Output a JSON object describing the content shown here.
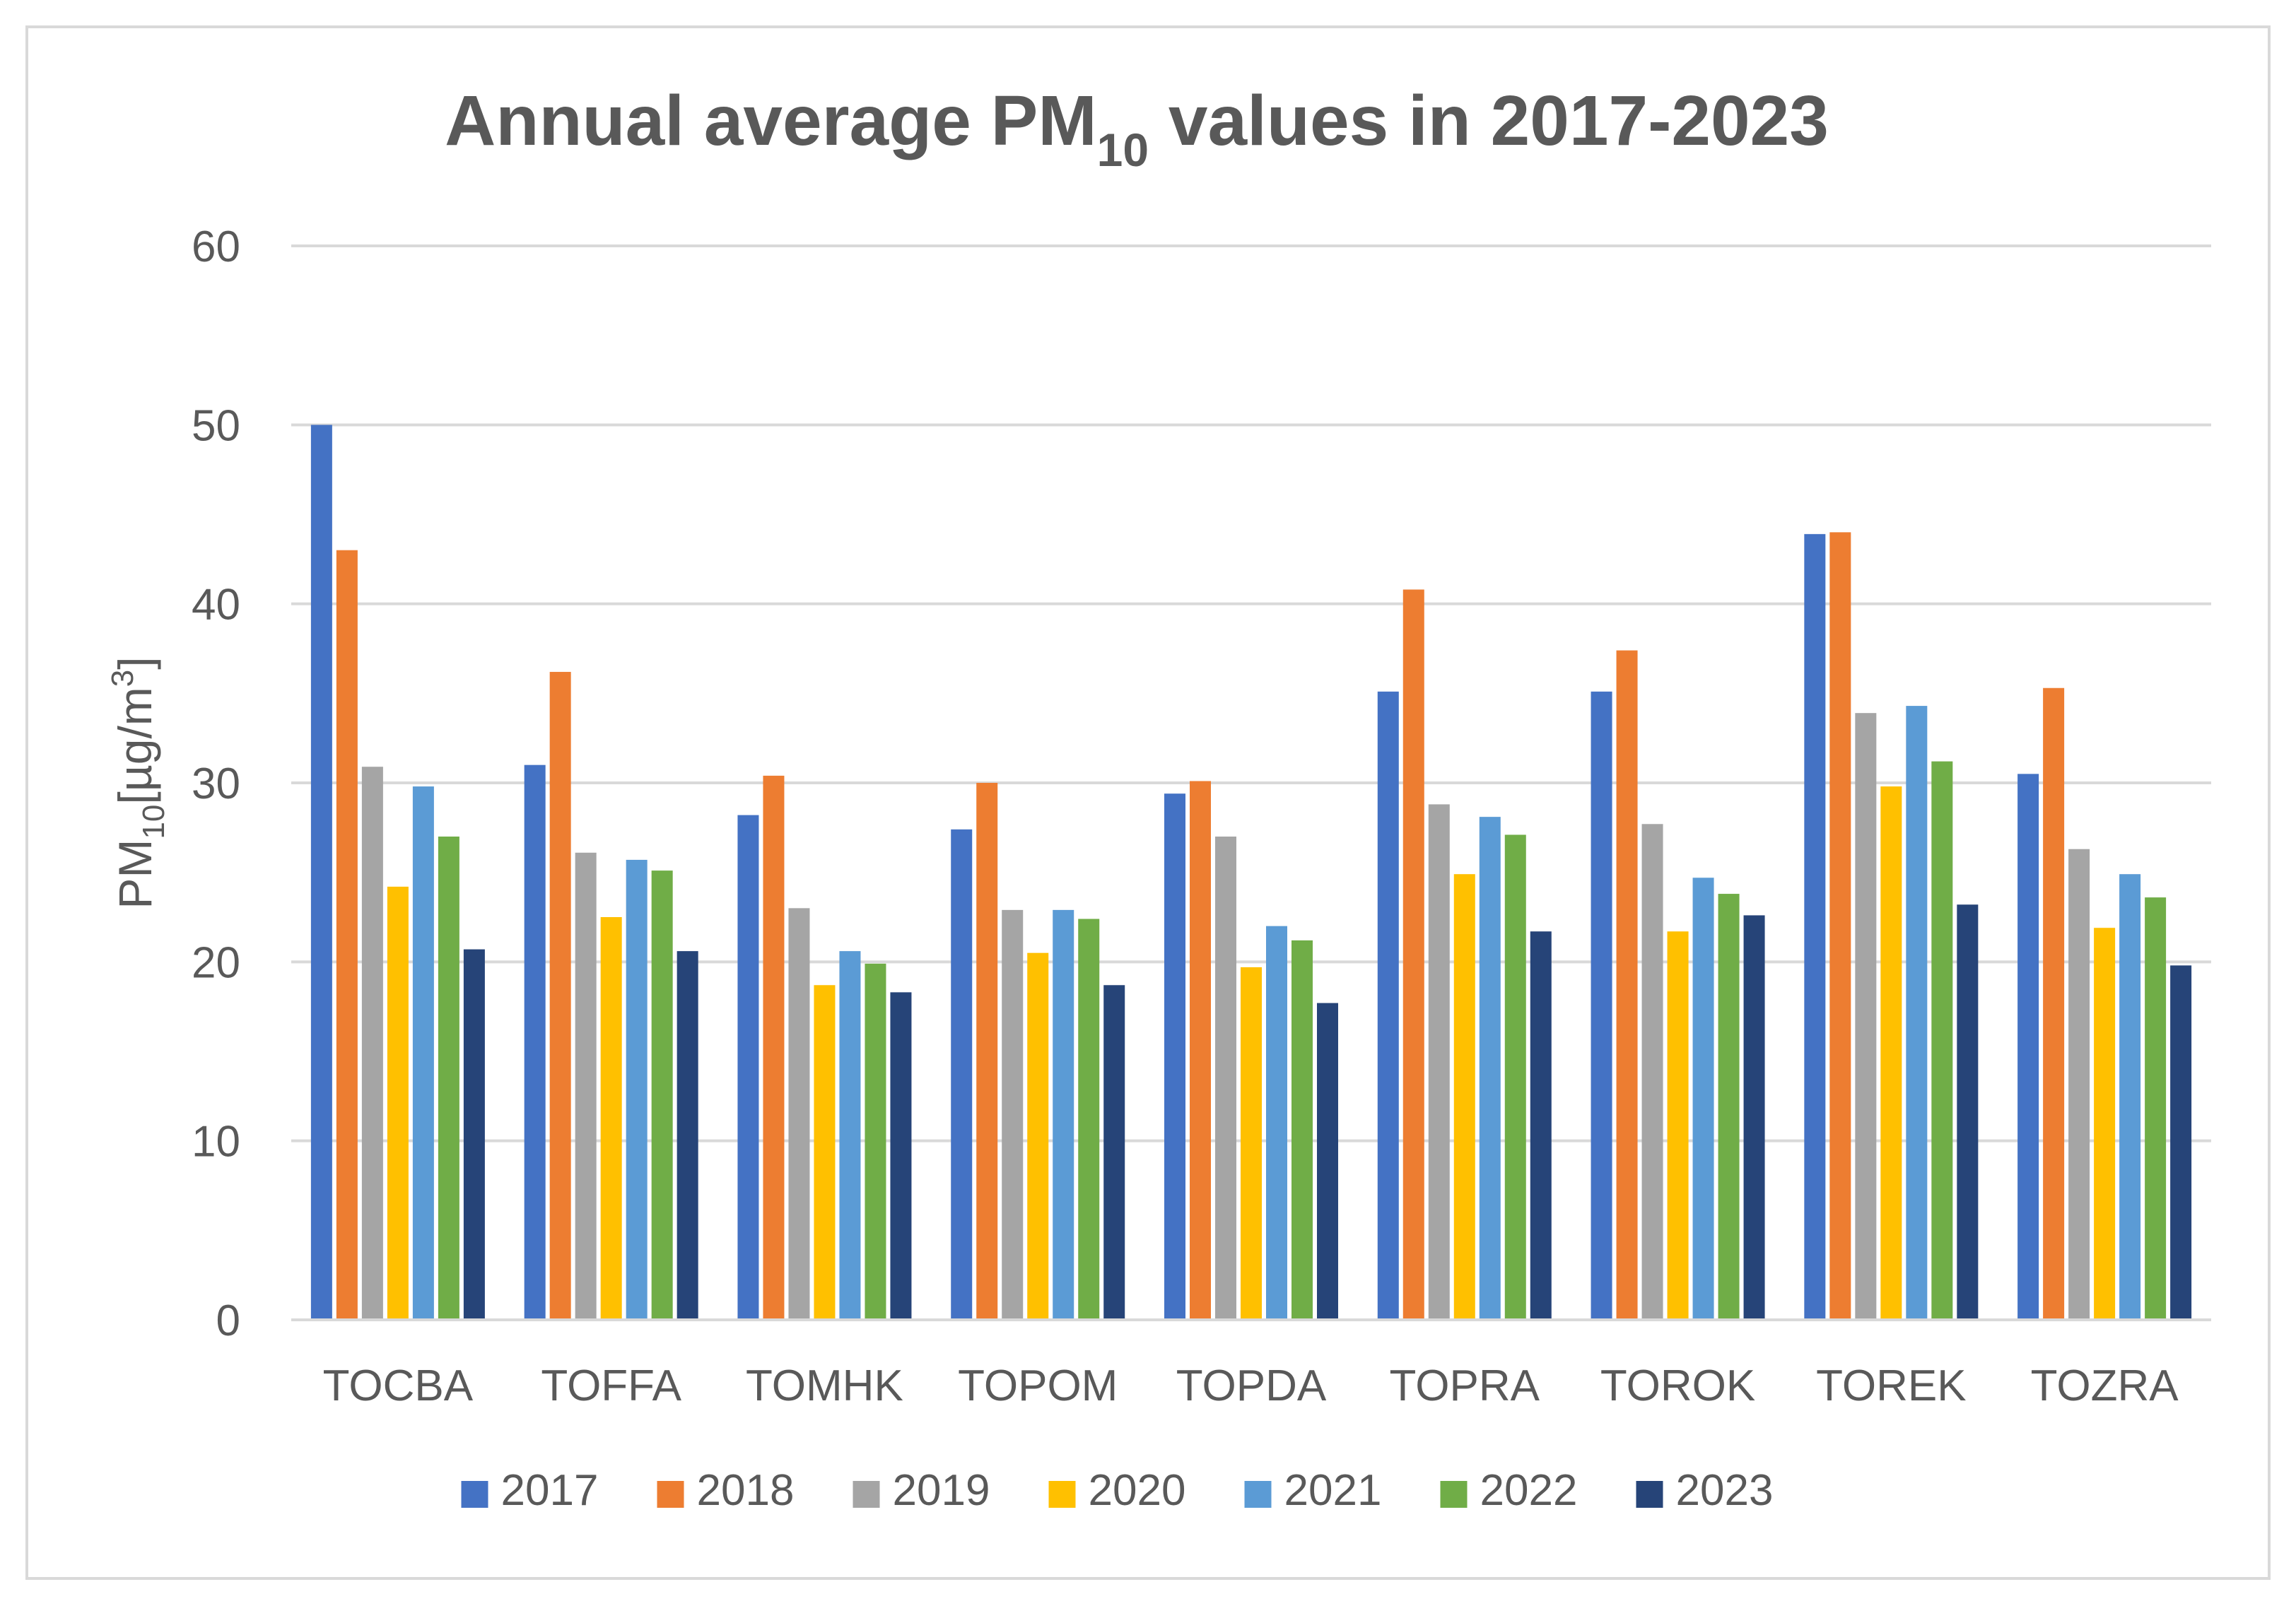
{
  "chart_data": {
    "type": "bar",
    "title": {
      "main": "Annual average PM",
      "subscript": "10",
      "suffix": " values in 2017-2023"
    },
    "ylabel": {
      "main": "PM",
      "subscript": "10",
      "unit_prefix": "[µg/m",
      "unit_superscript": "3",
      "unit_suffix": "]"
    },
    "xlabel": "",
    "ylim": [
      0,
      60
    ],
    "yticks": [
      0,
      10,
      20,
      30,
      40,
      50,
      60
    ],
    "grid": true,
    "legend_position": "bottom",
    "categories": [
      "TOCBA",
      "TOFFA",
      "TOMHK",
      "TOPOM",
      "TOPDA",
      "TOPRA",
      "TOROK",
      "TOREK",
      "TOZRA"
    ],
    "series": [
      {
        "name": "2017",
        "color": "#4472c4",
        "values": [
          50.0,
          31.0,
          28.2,
          27.4,
          29.4,
          35.1,
          35.1,
          43.9,
          30.5
        ]
      },
      {
        "name": "2018",
        "color": "#ed7d31",
        "values": [
          43.0,
          36.2,
          30.4,
          30.0,
          30.1,
          40.8,
          37.4,
          44.0,
          35.3
        ]
      },
      {
        "name": "2019",
        "color": "#a5a5a5",
        "values": [
          30.9,
          26.1,
          23.0,
          22.9,
          27.0,
          28.8,
          27.7,
          33.9,
          26.3
        ]
      },
      {
        "name": "2020",
        "color": "#ffc000",
        "values": [
          24.2,
          22.5,
          18.7,
          20.5,
          19.7,
          24.9,
          21.7,
          29.8,
          21.9
        ]
      },
      {
        "name": "2021",
        "color": "#5b9bd5",
        "values": [
          29.8,
          25.7,
          20.6,
          22.9,
          22.0,
          28.1,
          24.7,
          34.3,
          24.9
        ]
      },
      {
        "name": "2022",
        "color": "#70ad47",
        "values": [
          27.0,
          25.1,
          19.9,
          22.4,
          21.2,
          27.1,
          23.8,
          31.2,
          23.6
        ]
      },
      {
        "name": "2023",
        "color": "#264478",
        "values": [
          20.7,
          20.6,
          18.3,
          18.7,
          17.7,
          21.7,
          22.6,
          23.2,
          19.8
        ]
      }
    ]
  }
}
